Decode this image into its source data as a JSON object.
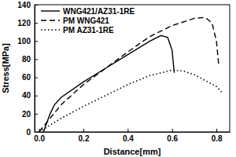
{
  "chart_data": {
    "type": "line",
    "x_label": "Distance[mm]",
    "y_label": "Stress[MPa]",
    "xlim": [
      -0.02,
      0.86
    ],
    "ylim": [
      0,
      140
    ],
    "xticks": [
      {
        "value": 0,
        "label": "0.0"
      },
      0.2,
      0.4,
      0.6,
      0.8
    ],
    "yticks": [
      0,
      20,
      40,
      60,
      80,
      100,
      120,
      140
    ],
    "legend": "upper left",
    "series": [
      {
        "name": "WNG421/AZ31-1RE",
        "color": "#000000",
        "line_style": "solid",
        "x": [
          0.02,
          0.05,
          0.07,
          0.1,
          0.2,
          0.3,
          0.4,
          0.5,
          0.55,
          0.58,
          0.6,
          0.61
        ],
        "values": [
          0,
          20,
          30,
          38,
          55,
          70,
          85,
          100,
          106,
          104,
          90,
          65
        ]
      },
      {
        "name": "PM WNG421",
        "color": "#000000",
        "line_style": "dashed",
        "x": [
          0.0,
          0.1,
          0.2,
          0.3,
          0.4,
          0.5,
          0.6,
          0.7,
          0.75,
          0.78,
          0.8,
          0.81
        ],
        "values": [
          0,
          30,
          52,
          70,
          88,
          105,
          117,
          125,
          126,
          120,
          100,
          75
        ]
      },
      {
        "name": "PM AZ31-1RE",
        "color": "#000000",
        "line_style": "dotted",
        "x": [
          0.0,
          0.1,
          0.2,
          0.3,
          0.4,
          0.5,
          0.6,
          0.65,
          0.7,
          0.8,
          0.83
        ],
        "values": [
          0,
          15,
          28,
          40,
          52,
          62,
          68,
          67,
          63,
          50,
          42
        ]
      }
    ]
  }
}
